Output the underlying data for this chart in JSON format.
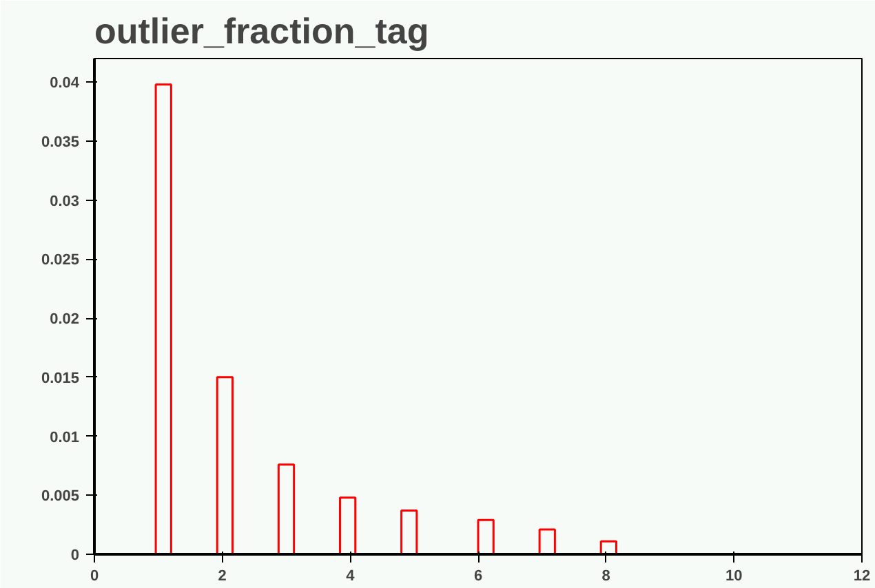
{
  "chart_data": {
    "type": "histogram",
    "title": "outlier_fraction_tag",
    "color": "#ff0000",
    "bins": [
      0,
      0.24,
      0.48,
      0.72,
      0.96,
      1.2,
      1.44,
      1.68,
      1.92,
      2.16,
      2.4,
      2.64,
      2.88,
      3.12,
      3.36,
      3.6,
      3.84,
      4.08,
      4.32,
      4.56,
      4.8,
      5.04,
      5.28,
      5.52,
      5.76,
      6,
      6.24,
      6.48,
      6.72,
      6.96,
      7.2,
      7.44,
      7.68,
      7.92,
      8.16,
      8.4,
      8.64,
      8.88,
      9.12,
      9.36,
      9.6,
      9.84,
      10.08,
      10.32,
      10.56,
      10.8,
      11.04,
      11.28,
      11.52,
      11.76,
      12
    ],
    "values": [
      0,
      0,
      0,
      0,
      0.0398,
      0,
      0,
      0,
      0.015,
      0,
      0,
      0,
      0.0076,
      0,
      0,
      0,
      0.0048,
      0,
      0,
      0,
      0.0037,
      0,
      0,
      0,
      0,
      0.0029,
      0,
      0,
      0,
      0.0021,
      0,
      0,
      0,
      0.0011,
      0,
      0,
      0,
      0,
      0,
      0,
      0,
      0,
      0,
      0,
      0,
      0,
      0,
      0,
      0,
      0
    ],
    "xlim": [
      0,
      12
    ],
    "xticks": [
      0,
      2,
      4,
      6,
      8,
      10,
      12
    ],
    "ylim": [
      0,
      0.042
    ],
    "yticks": [
      0,
      0.005,
      0.01,
      0.015,
      0.02,
      0.025,
      0.03,
      0.035,
      0.04
    ]
  }
}
